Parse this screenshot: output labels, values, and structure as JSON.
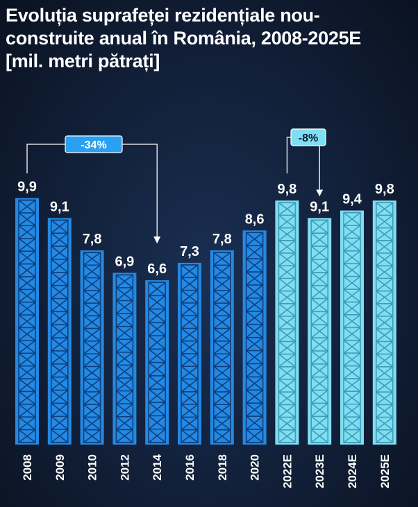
{
  "chart_data": {
    "type": "bar",
    "title_lines": [
      "Evoluția suprafeței rezidențiale nou-",
      "construite anual în România, 2008-2025E",
      "[mil. metri pătrați]"
    ],
    "categories": [
      "2008",
      "2009",
      "2010",
      "2012",
      "2014",
      "2016",
      "2018",
      "2020",
      "2022E",
      "2023E",
      "2024E",
      "2025E"
    ],
    "values": [
      9.9,
      9.1,
      7.8,
      6.9,
      6.6,
      7.3,
      7.8,
      8.6,
      9.8,
      9.1,
      9.4,
      9.8
    ],
    "value_labels": [
      "9,9",
      "9,1",
      "7,8",
      "6,9",
      "6,6",
      "7,3",
      "7,8",
      "8,6",
      "9,8",
      "9,1",
      "9,4",
      "9,8"
    ],
    "estimate_from_index": 8,
    "ylim": [
      0,
      10
    ],
    "grid": false,
    "colors": {
      "actual": "#2389e3",
      "actual_lattice": "#0f3f7e",
      "estimate": "#7fdef2",
      "estimate_lattice": "#3f9cb6",
      "annotation_box_1": "#2aa0f0",
      "annotation_box_2": "#7fdef2"
    },
    "annotations": [
      {
        "label": "-34%",
        "from": "2008",
        "to": "2014"
      },
      {
        "label": "-8%",
        "from": "2022E",
        "to": "2023E"
      }
    ]
  }
}
